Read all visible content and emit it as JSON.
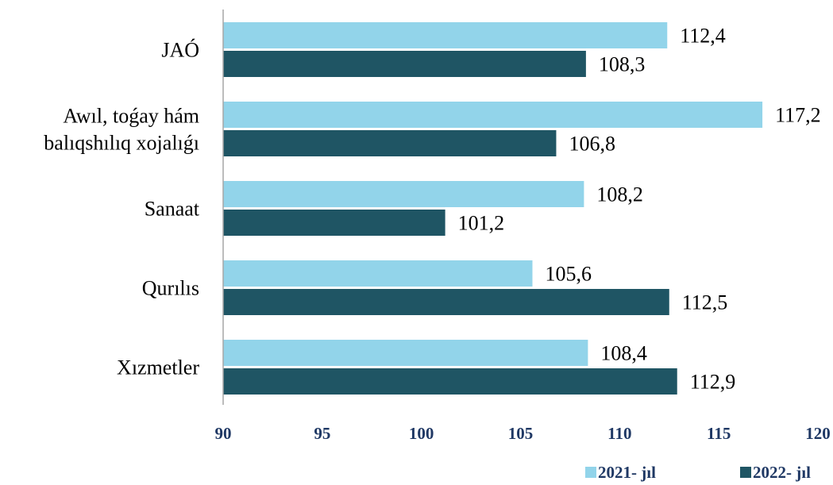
{
  "chart_data": {
    "type": "bar",
    "orientation": "horizontal",
    "categories": [
      [
        "JAÓ"
      ],
      [
        "Awıl, toǵay hám",
        "balıqshılıq xojalıǵı"
      ],
      [
        "Sanaat"
      ],
      [
        "Qurılıs"
      ],
      [
        "Xızmetler"
      ]
    ],
    "series": [
      {
        "name": "2021- jıl",
        "color": "#92d4ea",
        "values": [
          112.4,
          117.2,
          108.2,
          105.6,
          108.4
        ],
        "labels": [
          "112,4",
          "117,2",
          "108,2",
          "105,6",
          "108,4"
        ]
      },
      {
        "name": "2022- jıl",
        "color": "#1f5564",
        "values": [
          108.3,
          106.8,
          101.2,
          112.5,
          112.9
        ],
        "labels": [
          "108,3",
          "106,8",
          "101,2",
          "112,5",
          "112,9"
        ]
      }
    ],
    "xlim": [
      90,
      120
    ],
    "xticks": [
      "90",
      "95",
      "100",
      "105",
      "110",
      "115",
      "120"
    ],
    "legend_position": "bottom-right",
    "grid": false
  }
}
